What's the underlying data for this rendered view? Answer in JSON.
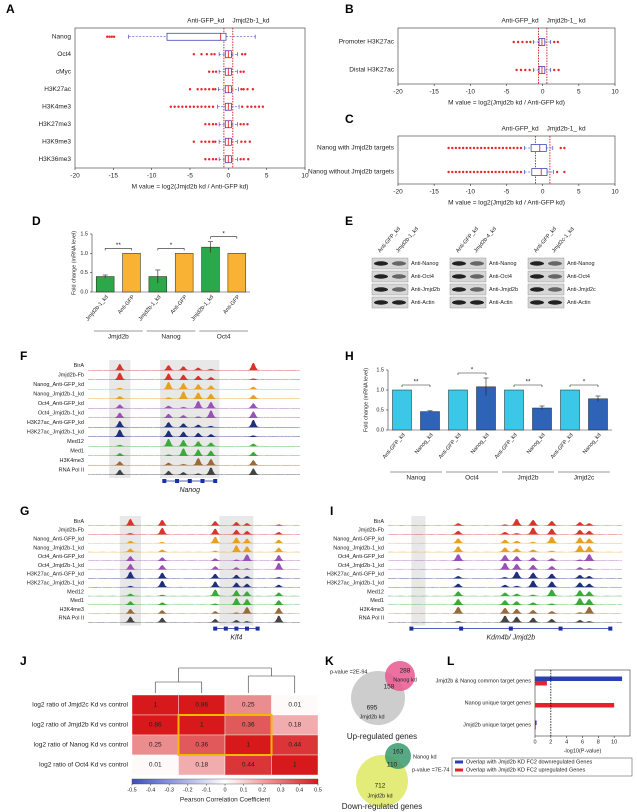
{
  "chart_data": [
    {
      "panel": "A",
      "type": "box",
      "header_labels": [
        "Anti-GFP_kd",
        "Jmjd2b-1_kd"
      ],
      "categories": [
        "Nanog",
        "Oct4",
        "cMyc",
        "H3K27ac",
        "H3K4me3",
        "H3K27me3",
        "H3K9me3",
        "H3K36me3"
      ],
      "boxes": [
        {
          "min": -13,
          "q1": -8,
          "median": -1,
          "q3": -0.3,
          "max": 3.5,
          "outliers": [
            -15.8,
            -15.5,
            -15.2,
            -14.9
          ]
        },
        {
          "min": -1.2,
          "q1": -0.4,
          "median": 0,
          "q3": 0.4,
          "max": 1.2,
          "outliers": [
            -4.5,
            -3.5,
            -2.8,
            -2.2,
            -1.8,
            1.8,
            2.2
          ]
        },
        {
          "min": -1.2,
          "q1": -0.4,
          "median": 0,
          "q3": 0.4,
          "max": 1.2,
          "outliers": [
            -2.5,
            -2,
            -1.6,
            1.6,
            2
          ]
        },
        {
          "min": -1.3,
          "q1": -0.4,
          "median": 0,
          "q3": 0.4,
          "max": 1.3,
          "outliers": [
            -5,
            -4,
            -3.5,
            -3,
            -2.5,
            -2,
            -1.7,
            1.7,
            2,
            2.5,
            3.2
          ]
        },
        {
          "min": -1.4,
          "q1": -0.4,
          "median": 0,
          "q3": 0.4,
          "max": 1.4,
          "outliers": [
            -7.5,
            -7,
            -6.5,
            -6,
            -5.5,
            -5,
            -4.5,
            -4,
            -3.5,
            -3,
            -2.5,
            -2,
            1.8,
            2.5,
            3,
            3.5,
            4,
            4.5
          ]
        },
        {
          "min": -1.2,
          "q1": -0.4,
          "median": 0,
          "q3": 0.4,
          "max": 1.2,
          "outliers": [
            -3,
            -2.5,
            -2,
            -1.6,
            1.6,
            2,
            2.5
          ]
        },
        {
          "min": -1.2,
          "q1": -0.4,
          "median": 0,
          "q3": 0.4,
          "max": 1.2,
          "outliers": [
            -4.5,
            -3.5,
            -3,
            -2.5,
            -2,
            -1.7,
            1.7,
            2.2,
            2.8
          ]
        },
        {
          "min": -1.2,
          "q1": -0.4,
          "median": 0,
          "q3": 0.4,
          "max": 1.2,
          "outliers": [
            -3,
            -2.5,
            -2,
            -1.6,
            1.6,
            2,
            2.6
          ]
        }
      ],
      "xlim": [
        -20,
        10
      ],
      "xticks": [
        -20,
        -15,
        -10,
        -5,
        0,
        5,
        10
      ],
      "xlabel": "M value = log2(Jmjd2b kd / Anti-GFP kd)",
      "vlines": [
        -0.58,
        0.58
      ],
      "box_color": "#2b2bb0",
      "median_color": "#e8262b",
      "outlier_color": "#e8262b",
      "vline_color": "#d4141a"
    },
    {
      "panel": "B",
      "type": "box",
      "header_labels": [
        "Anti-GFP_kd",
        "Jmjd2b-1_ kd"
      ],
      "categories": [
        "Promoter H3K27ac",
        "Distal H3K27ac"
      ],
      "boxes": [
        {
          "min": -1.3,
          "q1": -0.5,
          "median": -0.1,
          "q3": 0.3,
          "max": 1.1,
          "outliers": [
            -4,
            -3.4,
            -2.8,
            -2.2,
            -1.7,
            1.6,
            2.1
          ]
        },
        {
          "min": -1.3,
          "q1": -0.5,
          "median": -0.1,
          "q3": 0.3,
          "max": 1.1,
          "outliers": [
            -3.6,
            -3,
            -2.4,
            -1.8,
            1.6,
            2.2
          ]
        }
      ],
      "xlim": [
        -20,
        10
      ],
      "xticks": [
        -20,
        -15,
        -10,
        -5,
        0,
        5,
        10
      ],
      "xlabel": "M value = log2(Jmjd2b kd / Anti-GFP kd)",
      "vlines": [
        -0.58,
        0.58
      ],
      "box_color": "#2b2bb0",
      "median_color": "#e8262b",
      "outlier_color": "#e8262b",
      "vline_color": "#d4141a"
    },
    {
      "panel": "C",
      "type": "box",
      "header_labels": [
        "Anti-GFP_kd",
        "Jmjd2b-1_ kd"
      ],
      "categories": [
        "Nanog with Jmjd2b targets",
        "Nanog without Jmjd2b targets"
      ],
      "boxes": [
        {
          "min": -2.5,
          "q1": -1.6,
          "median": -0.4,
          "q3": 0.5,
          "max": 1.4,
          "outliers": [
            -13,
            -12.5,
            -12,
            -11.5,
            -11,
            -10.5,
            -10,
            -9.5,
            -9,
            -8.5,
            -8,
            -7.5,
            -7,
            -6.5,
            -6,
            -5.5,
            -5,
            -4.5,
            -4,
            -3.5,
            -3,
            2.5,
            3
          ]
        },
        {
          "min": -2.5,
          "q1": -1.5,
          "median": -0.2,
          "q3": 0.6,
          "max": 1.5,
          "outliers": [
            -13,
            -12.5,
            -12,
            -11.5,
            -11,
            -10.5,
            -10,
            -9.5,
            -9,
            -8.5,
            -8,
            -7.5,
            -7,
            -6.5,
            -6,
            -5.5,
            -5,
            -4.5,
            -4,
            -3.5,
            -3,
            2,
            3
          ]
        }
      ],
      "xlim": [
        -20,
        10
      ],
      "xticks": [
        -20,
        -15,
        -10,
        -5,
        0,
        5,
        10
      ],
      "xlabel": "M value = log2(Jmjd2b kd / Anti-GFP kd)",
      "vlines": [
        -1,
        1
      ],
      "box_color": "#2b2bb0",
      "median_color": "#e8262b",
      "outlier_color": "#e8262b",
      "vline_color": "#d4141a"
    },
    {
      "panel": "D",
      "type": "bar",
      "categories": [
        "Jmjd2b-1_kd",
        "Anti-GFP",
        "Jmjd2b-1_kd",
        "Anti-GFP",
        "Jmjd2b-1_kd",
        "Anti-GFP"
      ],
      "values": [
        0.4,
        1,
        0.4,
        1,
        1.16,
        1
      ],
      "errors": [
        0.04,
        0,
        0.17,
        0,
        0.14,
        0
      ],
      "colors": [
        "#2aa84a",
        "#f9b233",
        "#2aa84a",
        "#f9b233",
        "#2aa84a",
        "#f9b233"
      ],
      "groups": [
        "Jmjd2b",
        "Nanog",
        "Oct4"
      ],
      "significance": [
        "**",
        "*",
        "*"
      ],
      "ylabel": "Fold change (mRNA level)",
      "ylim": [
        0,
        1.5
      ],
      "yticks": [
        {
          "value": 0,
          "label": "0.0"
        },
        {
          "value": 0.5,
          "label": "0.5"
        },
        {
          "value": 1,
          "label": "1.0"
        },
        {
          "value": 1.5,
          "label": "1.5"
        }
      ]
    },
    {
      "panel": "H",
      "type": "bar",
      "categories": [
        "Anti-GFP_kd",
        "Nanog_kd",
        "Anti-GFP_kd",
        "Nanog_kd",
        "Anti-GFP_kd",
        "Nanog_kd",
        "Anti-GFP_kd",
        "Nanog_kd"
      ],
      "values": [
        1,
        0.46,
        1,
        1.08,
        1,
        0.55,
        1,
        0.78
      ],
      "errors": [
        0,
        0.02,
        0,
        0.22,
        0,
        0.05,
        0,
        0.07
      ],
      "colors": [
        "#3cc6e8",
        "#2e63b8",
        "#3cc6e8",
        "#2e63b8",
        "#3cc6e8",
        "#2e63b8",
        "#3cc6e8",
        "#2e63b8"
      ],
      "groups": [
        "Nanog",
        "Oct4",
        "Jmjd2b",
        "Jmjd2c"
      ],
      "significance": [
        "**",
        "*",
        "**",
        "*"
      ],
      "ylabel": "Fold change (mRNA level)",
      "ylim": [
        0,
        1.5
      ],
      "yticks": [
        {
          "value": 0,
          "label": "0.0"
        },
        {
          "value": 0.5,
          "label": "0.5"
        },
        {
          "value": 1,
          "label": "1.0"
        },
        {
          "value": 1.5,
          "label": "1.5"
        }
      ]
    },
    {
      "panel": "J",
      "type": "heatmap",
      "rows": [
        "log2 ratio of Jmjd2c Kd vs control",
        "log2 ratio of Jmjd2b Kd vs control",
        "log2 ratio of Nanog Kd vs control",
        "log2 ratio of Oct4 Kd vs control"
      ],
      "matrix": [
        [
          1,
          0.86,
          0.25,
          0.01
        ],
        [
          0.86,
          1,
          0.36,
          0.18
        ],
        [
          0.25,
          0.36,
          1,
          0.44
        ],
        [
          0.01,
          0.18,
          0.44,
          1
        ]
      ],
      "clim": [
        -0.5,
        0.5
      ],
      "cticks": [
        -0.5,
        -0.4,
        -0.3,
        -0.2,
        -0.1,
        0,
        0.1,
        0.2,
        0.3,
        0.4,
        0.5
      ],
      "clabel": "Pearson Correlation Coefficient"
    },
    {
      "panel": "L",
      "type": "hbar",
      "categories": [
        "Jmjd2b & Nanog common target genes",
        "Nanog unique target genes",
        "Jmjd2b unique target genes"
      ],
      "series": [
        {
          "name": "Overlap with Jmjd2b KD FC2 downregulated Genes",
          "color": "#2a3fb0",
          "values": [
            11,
            0,
            0.2
          ]
        },
        {
          "name": "Overlap with Jmjd2b KD FC2 upregulated Genes",
          "color": "#e0242a",
          "values": [
            1.5,
            10,
            0.1
          ]
        }
      ],
      "xlim": [
        0,
        12
      ],
      "xticks": [
        0,
        2,
        4,
        6,
        8,
        10
      ],
      "xlabel": "-log10(P-value)",
      "vlines": [
        2
      ]
    }
  ],
  "panels": {
    "E": {
      "label": "E",
      "blots": [
        {
          "columns": [
            "Anti-GFP_kd",
            "Jmjd2b-1_kd"
          ],
          "rows": [
            "Anti-Nanog",
            "Anti-Oct4",
            "Anti-Jmjd2b",
            "Anti-Actin"
          ]
        },
        {
          "columns": [
            "Anti-GFP_kd",
            "Jmjd2b-4_kd"
          ],
          "rows": [
            "Anti-Nanog",
            "Anti-Oct4",
            "Anti-Jmjd2b",
            "Anti-Actin"
          ]
        },
        {
          "columns": [
            "Anti-GFP_kd",
            "Jmjd2c-1_kd"
          ],
          "rows": [
            "Anti-Nanog",
            "Anti-Oct4",
            "Anti-Jmjd2c",
            "Anti-Actin"
          ]
        }
      ]
    },
    "F": {
      "label": "F",
      "gene": "Nanog",
      "tracks": [
        "BirA",
        "Jmjd2b-Fb",
        "Nanog_Anti-GFP_kd",
        "Nanog_Jmjd2b-1_kd",
        "Oct4_Anti-GFP_kd",
        "Oct4_Jmjd2b-1_kd",
        "H3K27ac_Anti-GFP_kd",
        "H3K27ac_Jmjd2b-1_kd",
        "Med12",
        "Med1",
        "H3K4me3",
        "RNA Pol II"
      ],
      "colors": [
        "#d9342b",
        "#d9342b",
        "#e8a023",
        "#e8a023",
        "#9b4fb8",
        "#9b4fb8",
        "#1f2f7a",
        "#1f2f7a",
        "#3aaa3a",
        "#3aaa3a",
        "#9a6a3a",
        "#444444"
      ]
    },
    "G": {
      "label": "G",
      "gene": "Klf4",
      "tracks": [
        "BirA",
        "Jmjd2b-Fb",
        "Nanog_Anti-GFP_kd",
        "Nanog_Jmjd2b-1_kd",
        "Oct4_Anti-GFP_kd",
        "Oct4_Jmjd2b-1_kd",
        "H3K27ac_Anti-GFP_kd",
        "H3K27ac_Jmjd2b-1_kd",
        "Med12",
        "Med1",
        "H3K4me3",
        "RNA Pol II"
      ],
      "colors": [
        "#d9342b",
        "#d9342b",
        "#e8a023",
        "#e8a023",
        "#9b4fb8",
        "#9b4fb8",
        "#1f2f7a",
        "#1f2f7a",
        "#3aaa3a",
        "#3aaa3a",
        "#9a6a3a",
        "#444444"
      ]
    },
    "I": {
      "label": "I",
      "gene": "Kdm4b/ Jmjd2b",
      "tracks": [
        "BirA",
        "Jmjd2b-Fb",
        "Nanog_Anti-GFP_kd",
        "Nanog_Jmjd2b-1_kd",
        "Oct4_Anti-GFP_kd",
        "Oct4_Jmjd2b-1_kd",
        "H3K27ac_Anti-GFP_kd",
        "H3K27ac_Jmjd2b-1_kd",
        "Med12",
        "Med1",
        "H3K4me3",
        "RNA Pol II"
      ],
      "colors": [
        "#d9342b",
        "#d9342b",
        "#e8a023",
        "#e8a023",
        "#9b4fb8",
        "#9b4fb8",
        "#1f2f7a",
        "#1f2f7a",
        "#3aaa3a",
        "#3aaa3a",
        "#9a6a3a",
        "#444444"
      ]
    },
    "K": {
      "label": "K",
      "venns": [
        {
          "pvalue": "p-value =2E-94",
          "a": 288,
          "a_label": "Nanog kd",
          "overlap": 158,
          "b": 695,
          "b_label": "Jmjd2b kd",
          "title": "Up-regulated genes",
          "a_color": "#e9588f",
          "b_color": "#c8c8c8"
        },
        {
          "pvalue": "p-value =7E-74",
          "a": 163,
          "a_label": "Nanog kd",
          "overlap": 110,
          "b": 712,
          "b_label": "Jmjd2b kd",
          "title": "Down-regulated genes",
          "a_color": "#3a9a6e",
          "b_color": "#e1ea6a"
        }
      ]
    }
  }
}
